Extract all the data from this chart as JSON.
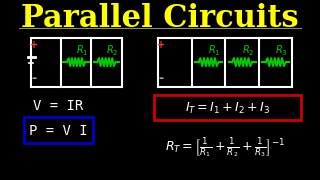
{
  "title": "Parallel Circuits",
  "title_color": "#FFFF00",
  "title_fontsize": 22,
  "bg_color": "#000000",
  "circuit_color": "#FFFFFF",
  "resistor_color": "#00CC00",
  "plus_color": "#FF0000",
  "minus_color": "#0000FF",
  "formula_color": "#FFFFFF",
  "box_red_color": "#CC0000",
  "box_blue_color": "#0000CC",
  "formula_vir": "V = IR",
  "formula_pvt": "P = V I",
  "formula_it": "I$_T$ = I$_1$ + I$_2$+I$_3$",
  "formula_rt": "R$_T$ = $\\left[\\frac{1}{R_1} + \\frac{1}{R_2} + \\frac{1}{R_3}\\right]^{-1}$"
}
